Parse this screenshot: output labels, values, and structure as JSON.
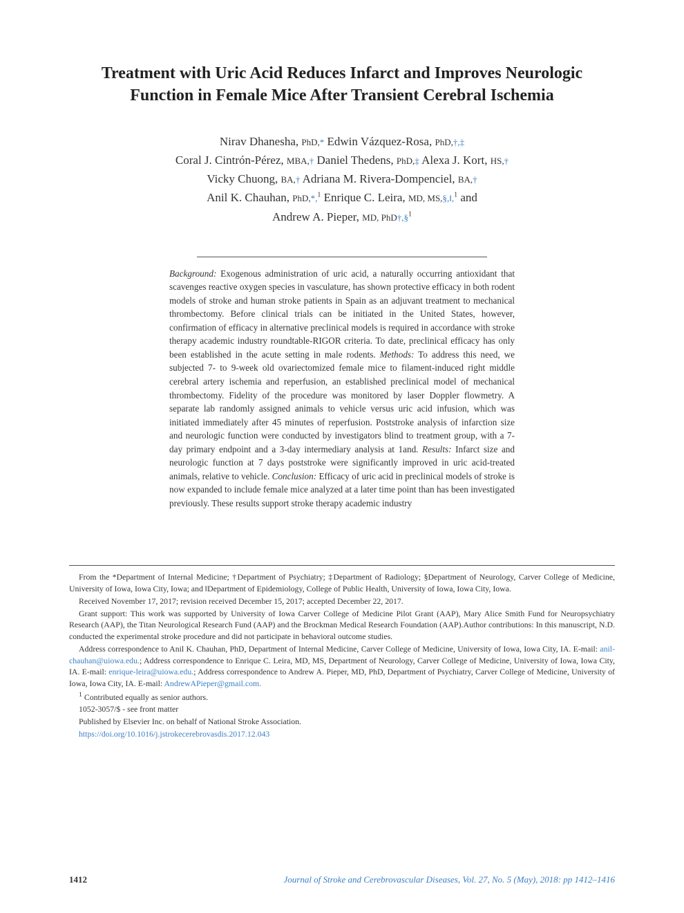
{
  "title": "Treatment with Uric Acid Reduces Infarct and Improves Neurologic Function in Female Mice After Transient Cerebral Ischemia",
  "authors": [
    {
      "name": "Nirav Dhanesha,",
      "degree": "PhD,",
      "symbols": "*"
    },
    {
      "name": "Edwin Vázquez-Rosa,",
      "degree": "PhD,",
      "symbols": "†,‡"
    },
    {
      "name": "Coral J. Cintrón-Pérez,",
      "degree": "MBA,",
      "symbols": "†"
    },
    {
      "name": "Daniel Thedens,",
      "degree": "PhD,",
      "symbols": "‡"
    },
    {
      "name": "Alexa J. Kort,",
      "degree": "HS,",
      "symbols": "†"
    },
    {
      "name": "Vicky Chuong,",
      "degree": "BA,",
      "symbols": "†"
    },
    {
      "name": "Adriana M. Rivera-Dompenciel,",
      "degree": "BA,",
      "symbols": "†"
    },
    {
      "name": "Anil K. Chauhan,",
      "degree": "PhD,",
      "symbols": "*,",
      "sup": "1"
    },
    {
      "name": "Enrique C. Leira,",
      "degree": "MD, MS,",
      "symbols": "§,‖,",
      "sup": "1",
      "suffix": " and"
    },
    {
      "name": "Andrew A. Pieper,",
      "degree": "MD, PhD",
      "symbols": "†,§",
      "sup": "1"
    }
  ],
  "abstract": {
    "background_label": "Background:",
    "background": " Exogenous administration of uric acid, a naturally occurring antioxidant that scavenges reactive oxygen species in vasculature, has shown protective efficacy in both rodent models of stroke and human stroke patients in Spain as an adjuvant treatment to mechanical thrombectomy. Before clinical trials can be initiated in the United States, however, confirmation of efficacy in alternative preclinical models is required in accordance with stroke therapy academic industry roundtable-RIGOR criteria. To date, preclinical efficacy has only been established in the acute setting in male rodents. ",
    "methods_label": "Methods:",
    "methods": " To address this need, we subjected 7- to 9-week old ovariectomized female mice to filament-induced right middle cerebral artery ischemia and reperfusion, an established preclinical model of mechanical thrombectomy. Fidelity of the procedure was monitored by laser Doppler flowmetry. A separate lab randomly assigned animals to vehicle versus uric acid infusion, which was initiated immediately after 45 minutes of reperfusion. Poststroke analysis of infarction size and neurologic function were conducted by investigators blind to treatment group, with a 7-day primary endpoint and a 3-day intermediary analysis at 1and. ",
    "results_label": "Results:",
    "results": " Infarct size and neurologic function at 7 days poststroke were significantly improved in uric acid-treated animals, relative to vehicle. ",
    "conclusion_label": "Conclusion:",
    "conclusion": " Efficacy of uric acid in preclinical models of stroke is now expanded to include female mice analyzed at a later time point than has been investigated previously. These results support stroke therapy academic industry"
  },
  "footnotes": {
    "affiliations": "From the *Department of Internal Medicine; †Department of Psychiatry; ‡Department of Radiology; §Department of Neurology, Carver College of Medicine, University of Iowa, Iowa City, Iowa; and ‖Department of Epidemiology, College of Public Health, University of Iowa, Iowa City, Iowa.",
    "received": "Received November 17, 2017; revision received December 15, 2017; accepted December 22, 2017.",
    "grant": "Grant support: This work was supported by University of Iowa Carver College of Medicine Pilot Grant (AAP), Mary Alice Smith Fund for Neuropsychiatry Research (AAP), the Titan Neurological Research Fund (AAP) and the Brockman Medical Research Foundation (AAP).Author contributions: In this manuscript, N.D. conducted the experimental stroke procedure and did not participate in behavioral outcome studies.",
    "corr_pre1": "Address correspondence to Anil K. Chauhan, PhD, Department of Internal Medicine, Carver College of Medicine, University of Iowa, Iowa City, IA. E-mail: ",
    "email1": "anil-chauhan@uiowa.edu.",
    "corr_pre2": "; Address correspondence to Enrique C. Leira, MD, MS, Department of Neurology, Carver College of Medicine, University of Iowa, Iowa City, IA. E-mail: ",
    "email2": "enrique-leira@uiowa.edu.",
    "corr_pre3": "; Address correspondence to Andrew A. Pieper, MD, PhD, Department of Psychiatry, Carver College of Medicine, University of Iowa, Iowa City, IA. E-mail: ",
    "email3": "AndrewAPieper@gmail.com.",
    "contrib_sup": "1",
    "contrib": "Contributed equally as senior authors.",
    "issn": "1052-3057/$ - see front matter",
    "publisher": "Published by Elsevier Inc. on behalf of National Stroke Association.",
    "doi": "https://doi.org/10.1016/j.jstrokecerebrovasdis.2017.12.043"
  },
  "footer": {
    "page": "1412",
    "journal": "Journal of Stroke and Cerebrovascular Diseases",
    "vol": ", Vol. 27, No. 5 (May), 2018: pp 1412–1416"
  },
  "colors": {
    "link": "#3a7fc4",
    "text": "#333333"
  }
}
